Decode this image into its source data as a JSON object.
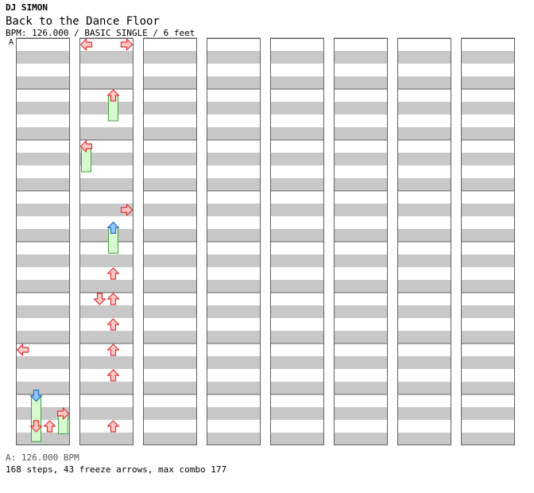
{
  "header": {
    "artist": "DJ SIMON",
    "song_title": "Back to the Dance Floor",
    "chart_info": "BPM: 126.000 / BASIC SINGLE / 6 feet"
  },
  "bpm_marker": "A",
  "footer": {
    "bpm_line": "A: 126.000 BPM",
    "stats_line": "168 steps, 43 freeze arrows, max combo 177"
  },
  "colors": {
    "arrow_red_fill": "#fbc8c8",
    "arrow_red_stroke": "#e03030",
    "arrow_blue_fill": "#90c8f8",
    "arrow_blue_stroke": "#3070c0",
    "freeze_fill": "#d8f8d0",
    "freeze_stroke": "#40a040",
    "stripe_gray": "#c8c8c8"
  },
  "step_chart": {
    "columns": 8,
    "measures_per_column": 8,
    "lanes": [
      "left",
      "down",
      "up",
      "right"
    ],
    "notes": [
      [
        0,
        6.0,
        [
          "left"
        ],
        0
      ],
      [
        0,
        6.9,
        [
          "down"
        ],
        0.9
      ],
      [
        0,
        7.25,
        [
          "right"
        ],
        0.4
      ],
      [
        0,
        7.5,
        [
          "down",
          "up"
        ],
        0
      ],
      [
        1,
        0.0,
        [
          "left",
          "right"
        ],
        0
      ],
      [
        1,
        1.0,
        [
          "up"
        ],
        0.5
      ],
      [
        1,
        2.0,
        [
          "left"
        ],
        0.5
      ],
      [
        1,
        3.25,
        [
          "right"
        ],
        0
      ],
      [
        1,
        3.6,
        [
          "up"
        ],
        0.5
      ],
      [
        1,
        4.5,
        [
          "up"
        ],
        0
      ],
      [
        1,
        5.0,
        [
          "down",
          "up"
        ],
        0
      ],
      [
        1,
        5.5,
        [
          "up"
        ],
        0
      ],
      [
        1,
        6.0,
        [
          "up"
        ],
        0
      ],
      [
        1,
        6.5,
        [
          "up"
        ],
        0
      ],
      [
        1,
        7.5,
        [
          "up"
        ],
        0
      ]
    ]
  }
}
